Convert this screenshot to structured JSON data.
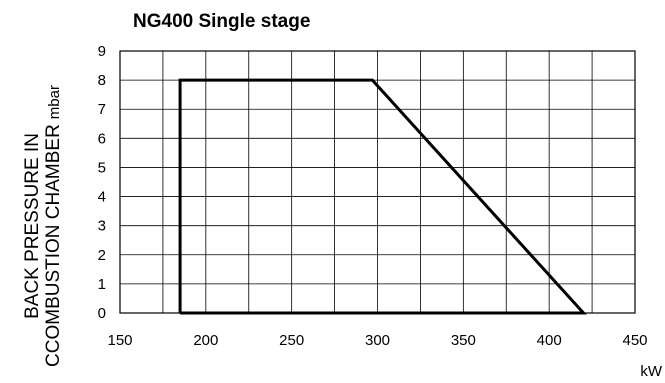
{
  "chart_data": {
    "type": "line",
    "title": "NG400 Single stage",
    "ylabel_line1": "BACK PRESSURE IN",
    "ylabel_line2": "CCOMBUSTION CHAMBER",
    "ylabel_unit": "mbar",
    "xlabel": "kW",
    "xlim": [
      150,
      450
    ],
    "ylim": [
      0,
      9
    ],
    "xticks": [
      150,
      200,
      250,
      300,
      350,
      400,
      450
    ],
    "yticks": [
      0,
      1,
      2,
      3,
      4,
      5,
      6,
      7,
      8,
      9
    ],
    "x_minor_step": 25,
    "grid": true,
    "series": [
      {
        "x": [
          185,
          185,
          297,
          420,
          185
        ],
        "y": [
          0,
          8,
          8,
          0,
          0
        ]
      }
    ]
  }
}
